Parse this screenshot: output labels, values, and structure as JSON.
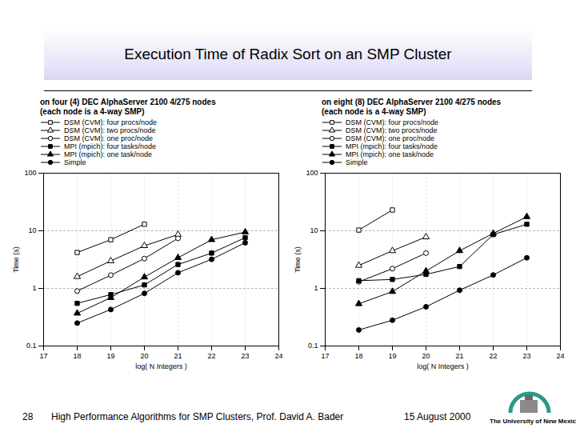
{
  "header": {
    "title": "Execution Time of Radix Sort on an SMP Cluster"
  },
  "footer": {
    "page": 28,
    "text": "High Performance Algorithms for SMP Clusters, Prof. David A. Bader",
    "date": "15 August 2000",
    "institution": "The University of New Mexico"
  },
  "chart_data": [
    {
      "type": "line",
      "title": "on four (4) DEC AlphaServer 2100 4/275 nodes",
      "subtitle": "(each node is a 4-way SMP)",
      "xlabel": "log( N Integers )",
      "ylabel": "Time (s)",
      "x": [
        18,
        19,
        20,
        21,
        22,
        23
      ],
      "series": [
        {
          "name": "DSM (CVM): four procs/node",
          "color": "#000000",
          "marker": "open-square",
          "line_style": "solid",
          "values": [
            4.2,
            7.0,
            13,
            null,
            null,
            null
          ]
        },
        {
          "name": "DSM (CVM): two procs/node",
          "color": "#000000",
          "marker": "open-triangle",
          "line_style": "solid",
          "values": [
            1.6,
            3.0,
            5.5,
            8.6,
            null,
            null
          ]
        },
        {
          "name": "DSM (CVM): one proc/node",
          "color": "#000000",
          "marker": "open-circle",
          "line_style": "solid",
          "values": [
            0.9,
            1.7,
            3.3,
            7.4,
            null,
            null
          ]
        },
        {
          "name": "MPI (mpich): four tasks/node",
          "color": "#000000",
          "marker": "filled-square",
          "line_style": "solid",
          "values": [
            0.55,
            0.78,
            1.15,
            2.6,
            4.1,
            7.6
          ]
        },
        {
          "name": "MPI (mpich): one task/node",
          "color": "#000000",
          "marker": "filled-triangle",
          "line_style": "solid",
          "values": [
            0.37,
            0.69,
            1.57,
            3.4,
            7.0,
            9.5
          ]
        },
        {
          "name": "Simple",
          "color": "#000000",
          "marker": "filled-circle",
          "line_style": "solid",
          "values": [
            0.25,
            0.43,
            0.82,
            1.87,
            3.2,
            6.2
          ]
        }
      ],
      "xlim": [
        17,
        24
      ],
      "xticks": [
        17,
        18,
        19,
        20,
        21,
        22,
        23,
        24
      ],
      "ylim": [
        0.1,
        100
      ],
      "yticks": [
        0.1,
        1,
        10,
        100
      ],
      "log": "y",
      "grid": true,
      "legend": "top"
    },
    {
      "type": "line",
      "title": "on eight (8) DEC AlphaServer 2100 4/275 nodes",
      "subtitle": "(each node is a 4-way SMP)",
      "xlabel": "log( N Integers )",
      "ylabel": "Time (s)",
      "x": [
        18,
        19,
        20,
        21,
        22,
        23
      ],
      "series": [
        {
          "name": "DSM (CVM): four procs/node",
          "color": "#000000",
          "marker": "open-square",
          "line_style": "solid",
          "values": [
            10.3,
            23,
            null,
            null,
            null,
            null
          ]
        },
        {
          "name": "DSM (CVM): two procs/node",
          "color": "#000000",
          "marker": "open-triangle",
          "line_style": "solid",
          "values": [
            2.5,
            4.5,
            7.8,
            null,
            null,
            null
          ]
        },
        {
          "name": "DSM (CVM): one proc/node",
          "color": "#000000",
          "marker": "open-circle",
          "line_style": "solid",
          "values": [
            1.3,
            2.2,
            4.1,
            null,
            null,
            null
          ]
        },
        {
          "name": "MPI (mpich): four tasks/node",
          "color": "#000000",
          "marker": "filled-square",
          "line_style": "solid",
          "values": [
            1.36,
            1.43,
            1.75,
            2.4,
            8.6,
            13
          ]
        },
        {
          "name": "MPI (mpich): one task/node",
          "color": "#000000",
          "marker": "filled-triangle",
          "line_style": "solid",
          "values": [
            0.54,
            0.88,
            2.0,
            4.5,
            9.0,
            17.5
          ]
        },
        {
          "name": "Simple",
          "color": "#000000",
          "marker": "filled-circle",
          "line_style": "solid",
          "values": [
            0.19,
            0.28,
            0.48,
            0.93,
            1.71,
            3.4
          ]
        }
      ],
      "xlim": [
        17,
        24
      ],
      "xticks": [
        17,
        18,
        19,
        20,
        21,
        22,
        23,
        24
      ],
      "ylim": [
        0.1,
        100
      ],
      "yticks": [
        0.1,
        1,
        10,
        100
      ],
      "log": "y",
      "grid": true,
      "legend": "top"
    }
  ]
}
